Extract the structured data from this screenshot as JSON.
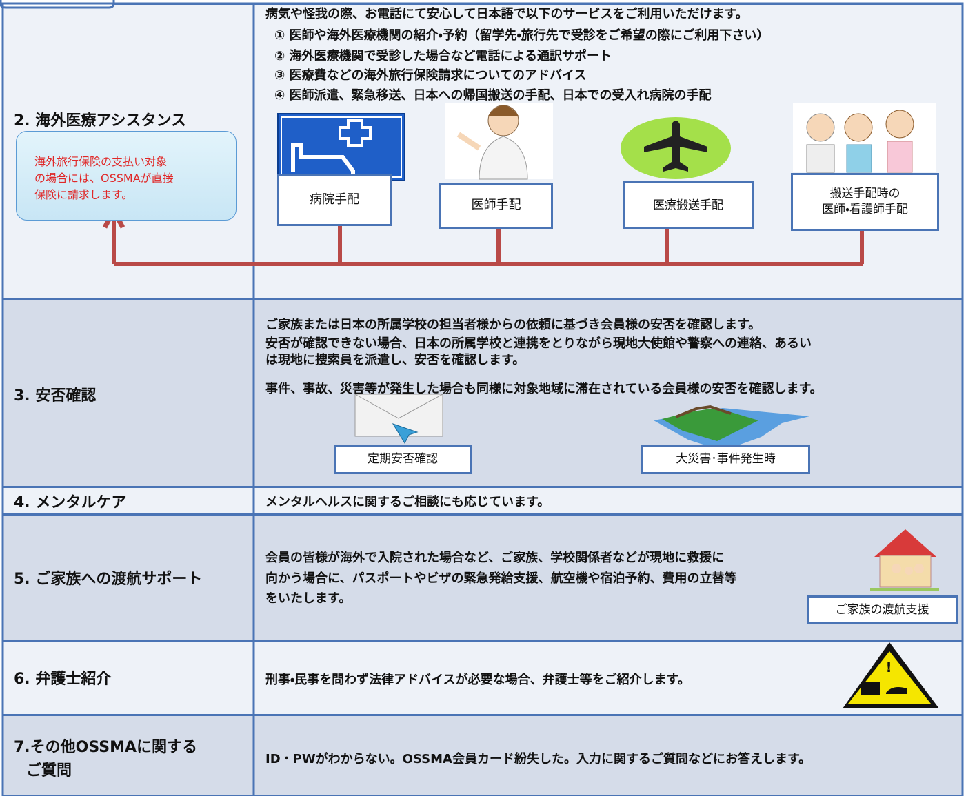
{
  "sections": [
    {
      "label": "2. 海外医療アシスタンス",
      "intro": "病気や怪我の際、お電話にて安心して日本語で以下のサービスをご利用いただけます。",
      "items": [
        "① 医師や海外医療機関の紹介・予約（留学先・旅行先で受診をご希望の際にご利用下さい）",
        "② 海外医療機関で受診した場合など電話による通訳サポート",
        "③ 医療費などの海外旅行保険請求についてのアドバイス",
        "④ 医師派遣、緊急移送、日本への帰国搬送の手配、日本での受入れ病院の手配"
      ],
      "note": [
        "海外旅行保険の支払い対象",
        "の場合には、OSSMAが直接",
        "保険に請求します。"
      ],
      "boxes": [
        [
          "病院手配"
        ],
        [
          "医師手配"
        ],
        [
          "医療搬送手配"
        ],
        [
          "搬送手配時の",
          "医師・看護師手配"
        ]
      ]
    },
    {
      "label": "3. 安否確認",
      "lines": [
        "ご家族または日本の所属学校の担当者様からの依頼に基づき会員様の安否を確認します。",
        "安否が確認できない場合、日本の所属学校と連携をとりながら現地大使館や警察への連絡、あるい",
        "は現地に捜索員を派遣し、安否を確認します。",
        "事件、事故、災害等が発生した場合も同様に対象地域に滞在されている会員様の安否を確認します。"
      ],
      "boxes": [
        "定期安否確認",
        "大災害･事件発生時"
      ]
    },
    {
      "label": "4. メンタルケア",
      "lines": [
        "メンタルヘルスに関するご相談にも応じています。"
      ]
    },
    {
      "label": "5. ご家族への渡航サポート",
      "lines": [
        "会員の皆様が海外で入院された場合など、ご家族、学校関係者などが現地に救援に",
        "向かう場合に、パスポートやビザの緊急発給支援、航空機や宿泊予約、費用の立替等",
        "をいたします。"
      ],
      "boxes": [
        "ご家族の渡航支援"
      ]
    },
    {
      "label": "6. 弁護士紹介",
      "lines": [
        "刑事・民事を問わず法律アドバイスが必要な場合、弁護士等をご紹介します。"
      ]
    },
    {
      "label": [
        "7.その他OSSMAに関する",
        "ご質問"
      ],
      "lines": [
        "ID・PWがわからない。OSSMA会員カード紛失した。入力に関するご質問などにお答えします。"
      ]
    }
  ]
}
